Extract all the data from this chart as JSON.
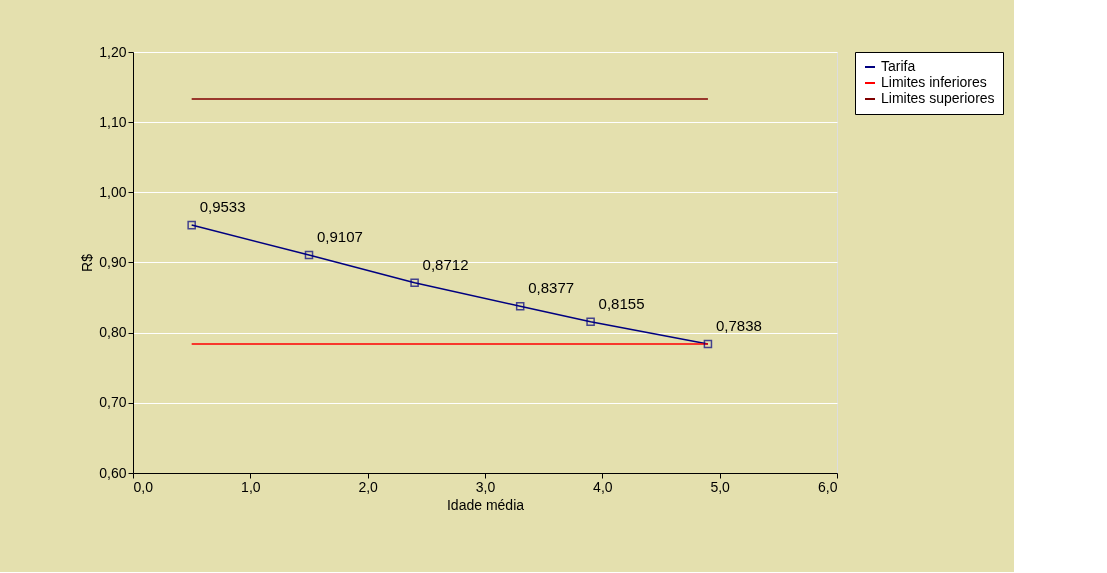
{
  "chart_data": {
    "type": "line",
    "xlabel": "Idade média",
    "ylabel": "R$",
    "xlim": [
      0,
      6
    ],
    "ylim": [
      0.6,
      1.2
    ],
    "xticks": [
      {
        "value": 0,
        "label": "0,0"
      },
      {
        "value": 1,
        "label": "1,0"
      },
      {
        "value": 2,
        "label": "2,0"
      },
      {
        "value": 3,
        "label": "3,0"
      },
      {
        "value": 4,
        "label": "4,0"
      },
      {
        "value": 5,
        "label": "5,0"
      },
      {
        "value": 6,
        "label": "6,0"
      }
    ],
    "yticks": [
      {
        "value": 0.6,
        "label": "0,60"
      },
      {
        "value": 0.7,
        "label": "0,70"
      },
      {
        "value": 0.8,
        "label": "0,80"
      },
      {
        "value": 0.9,
        "label": "0,90"
      },
      {
        "value": 1.0,
        "label": "1,00"
      },
      {
        "value": 1.1,
        "label": "1,10"
      },
      {
        "value": 1.2,
        "label": "1,20"
      }
    ],
    "grid": "y",
    "legend": "right",
    "series": [
      {
        "name": "Tarifa",
        "color": "#000080",
        "marker": "square",
        "x": [
          0.5,
          1.5,
          2.4,
          3.3,
          3.9,
          4.9
        ],
        "values": [
          0.9533,
          0.9107,
          0.8712,
          0.8377,
          0.8155,
          0.7838
        ],
        "value_labels": [
          "0,9533",
          "0,9107",
          "0,8712",
          "0,8377",
          "0,8155",
          "0,7838"
        ]
      },
      {
        "name": "Limites inferiores",
        "color": "#ff0000",
        "marker": "none",
        "x": [
          0.5,
          4.9
        ],
        "values": [
          0.784,
          0.784
        ]
      },
      {
        "name": "Limites superiores",
        "color": "#800000",
        "marker": "none",
        "x": [
          0.5,
          4.9
        ],
        "values": [
          1.133,
          1.133
        ]
      }
    ]
  }
}
